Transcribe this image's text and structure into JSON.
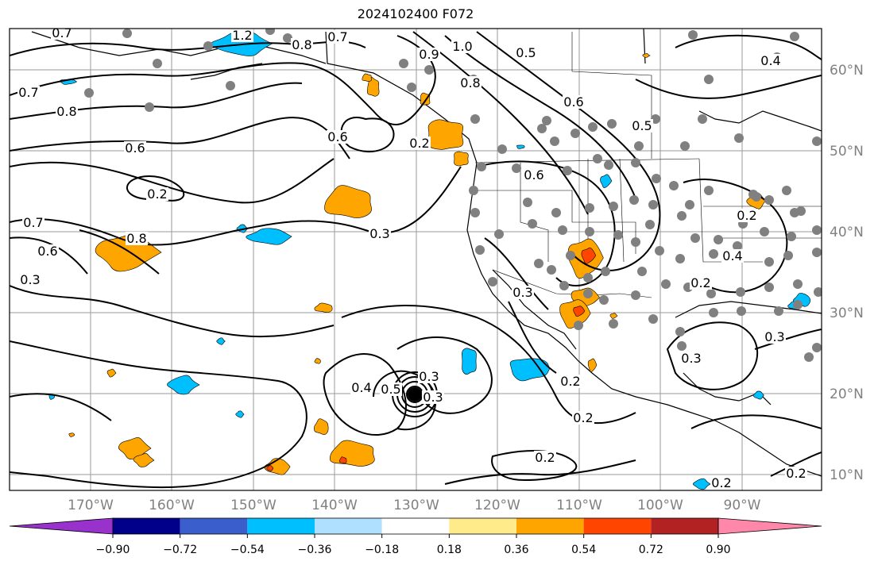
{
  "title": "2024102400 F072",
  "map": {
    "lat_ticks": [
      "10°N",
      "20°N",
      "30°N",
      "40°N",
      "50°N",
      "60°N"
    ],
    "lon_ticks": [
      "170°W",
      "160°W",
      "150°W",
      "140°W",
      "130°W",
      "120°W",
      "110°W",
      "100°W",
      "90°W"
    ],
    "contour_labels": [
      {
        "text": "0.7"
      },
      {
        "text": "1.2"
      },
      {
        "text": "0.8"
      },
      {
        "text": "0.7"
      },
      {
        "text": "1.0"
      },
      {
        "text": "0.5"
      },
      {
        "text": "0.9"
      },
      {
        "text": "0.4"
      },
      {
        "text": "0.8"
      },
      {
        "text": "0.7"
      },
      {
        "text": "0.8"
      },
      {
        "text": "0.6"
      },
      {
        "text": "0.6"
      },
      {
        "text": "0.2"
      },
      {
        "text": "0.2"
      },
      {
        "text": "0.6"
      },
      {
        "text": "0.6"
      },
      {
        "text": "0.5"
      },
      {
        "text": "0.7"
      },
      {
        "text": "0.8"
      },
      {
        "text": "0.6"
      },
      {
        "text": "0.3"
      },
      {
        "text": "0.3"
      },
      {
        "text": "0.2"
      },
      {
        "text": "0.4"
      },
      {
        "text": "0.3"
      },
      {
        "text": "0.4"
      },
      {
        "text": "0.5"
      },
      {
        "text": "0.3"
      },
      {
        "text": "0.3"
      },
      {
        "text": "0.2"
      },
      {
        "text": "0.2"
      },
      {
        "text": "0.3"
      },
      {
        "text": "0.3"
      },
      {
        "text": "0.2"
      },
      {
        "text": "0.2"
      },
      {
        "text": "0.2"
      },
      {
        "text": "0.2"
      }
    ],
    "colors": {
      "positive_fill": "#ffa500",
      "strong_positive_fill": "#ff4500",
      "negative_fill": "#00bfff",
      "station_marker": "#808080",
      "grid": "#9a9a9a"
    }
  },
  "colorbar": {
    "tick_labels": [
      "−0.90",
      "−0.72",
      "−0.54",
      "−0.36",
      "−0.18",
      "0.18",
      "0.36",
      "0.54",
      "0.72",
      "0.90"
    ],
    "colors": [
      "#9932cc",
      "#00008b",
      "#3a5fcd",
      "#00bfff",
      "#b0e0ff",
      "#ffffff",
      "#ffeb8a",
      "#ffa500",
      "#ff4500",
      "#b22222",
      "#ff88aa"
    ]
  }
}
